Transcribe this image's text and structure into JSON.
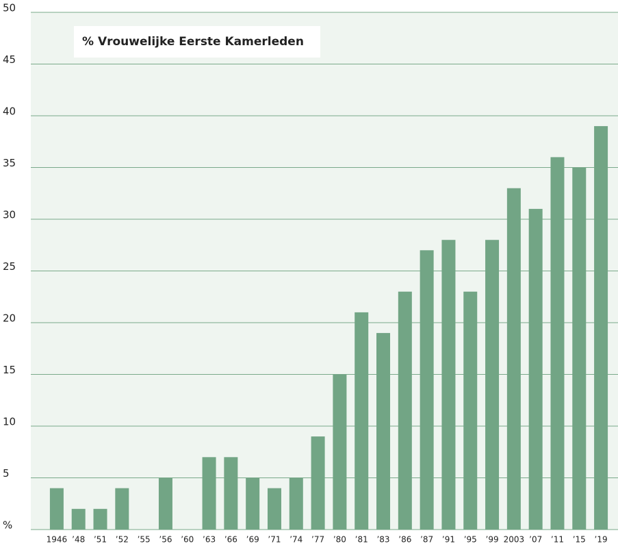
{
  "chart_data": {
    "type": "bar",
    "title": "% Vrouwelijke Eerste Kamerleden",
    "categories": [
      "1946",
      "’48",
      "’51",
      "’52",
      "’55",
      "’56",
      "’60",
      "’63",
      "’66",
      "’69",
      "’71",
      "’74",
      "’77",
      "’80",
      "’81",
      "’83",
      "’86",
      "’87",
      "’91",
      "’95",
      "’99",
      "2003",
      "’07",
      "’11",
      "’15",
      "’19"
    ],
    "values": [
      4,
      2,
      2,
      4,
      0,
      5,
      0,
      7,
      7,
      5,
      4,
      5,
      9,
      15,
      21,
      19,
      23,
      27,
      28,
      23,
      28,
      33,
      31,
      36,
      35,
      39
    ],
    "color": "#72a585",
    "ylim": [
      0,
      50
    ],
    "yticks": [
      {
        "value": 0,
        "label": "%"
      },
      5,
      10,
      15,
      20,
      25,
      30,
      35,
      40,
      45,
      50
    ],
    "grid": true
  }
}
